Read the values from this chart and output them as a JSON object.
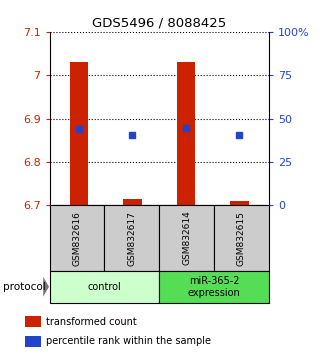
{
  "title": "GDS5496 / 8088425",
  "samples": [
    "GSM832616",
    "GSM832617",
    "GSM832614",
    "GSM832615"
  ],
  "red_values": [
    7.03,
    6.715,
    7.03,
    6.71
  ],
  "blue_values": [
    6.875,
    6.862,
    6.878,
    6.862
  ],
  "ylim_left": [
    6.7,
    7.1
  ],
  "ylim_right": [
    0,
    100
  ],
  "yticks_left": [
    6.7,
    6.8,
    6.9,
    7.0,
    7.1
  ],
  "yticks_right": [
    0,
    25,
    50,
    75,
    100
  ],
  "ytick_labels_left": [
    "6.7",
    "6.8",
    "6.9",
    "7",
    "7.1"
  ],
  "ytick_labels_right": [
    "0",
    "25",
    "50",
    "75",
    "100%"
  ],
  "bar_bottom": 6.7,
  "bar_color": "#cc2200",
  "blue_color": "#2244cc",
  "group_labels": [
    "control",
    "miR-365-2\nexpression"
  ],
  "group_ranges": [
    [
      0,
      2
    ],
    [
      2,
      4
    ]
  ],
  "group_color_light": "#ccffcc",
  "group_color_dark": "#55dd55",
  "sample_box_color": "#cccccc",
  "legend_red_label": "transformed count",
  "legend_blue_label": "percentile rank within the sample",
  "bar_width": 0.35,
  "xlim": [
    -0.55,
    3.55
  ]
}
